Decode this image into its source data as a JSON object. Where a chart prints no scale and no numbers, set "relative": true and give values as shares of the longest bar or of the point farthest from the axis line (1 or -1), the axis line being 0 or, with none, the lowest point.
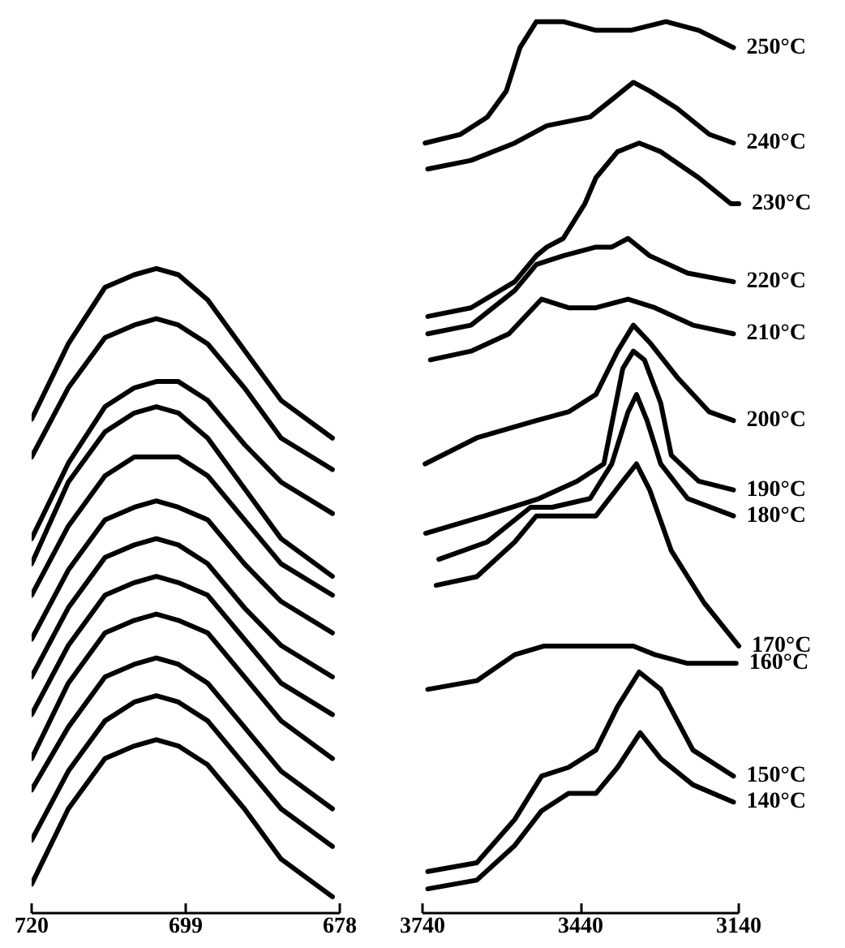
{
  "chart_data": [
    {
      "type": "line",
      "relative": true,
      "tick_labels": "x",
      "xlim": [
        720,
        678
      ],
      "xticks": [
        720,
        699,
        678
      ],
      "x": [
        720,
        715,
        710,
        706,
        703,
        700,
        696,
        691,
        686,
        679
      ],
      "series": [
        {
          "color": "#000000",
          "values": [
            0.76,
            0.88,
            0.97,
            0.99,
            1.0,
            0.99,
            0.95,
            0.87,
            0.79,
            0.73
          ]
        },
        {
          "color": "#000000",
          "values": [
            0.7,
            0.81,
            0.89,
            0.91,
            0.92,
            0.91,
            0.88,
            0.81,
            0.73,
            0.68
          ]
        },
        {
          "color": "#000000",
          "values": [
            0.57,
            0.69,
            0.78,
            0.81,
            0.82,
            0.82,
            0.79,
            0.72,
            0.66,
            0.61
          ]
        },
        {
          "color": "#000000",
          "values": [
            0.53,
            0.66,
            0.74,
            0.77,
            0.78,
            0.77,
            0.73,
            0.65,
            0.57,
            0.51
          ]
        },
        {
          "color": "#000000",
          "values": [
            0.48,
            0.59,
            0.67,
            0.7,
            0.7,
            0.7,
            0.67,
            0.6,
            0.53,
            0.48
          ]
        },
        {
          "color": "#000000",
          "values": [
            0.41,
            0.52,
            0.6,
            0.62,
            0.63,
            0.62,
            0.6,
            0.53,
            0.47,
            0.42
          ]
        },
        {
          "color": "#000000",
          "values": [
            0.35,
            0.46,
            0.54,
            0.56,
            0.57,
            0.56,
            0.53,
            0.46,
            0.4,
            0.35
          ]
        },
        {
          "color": "#000000",
          "values": [
            0.29,
            0.4,
            0.48,
            0.5,
            0.51,
            0.5,
            0.48,
            0.41,
            0.34,
            0.29
          ]
        },
        {
          "color": "#000000",
          "values": [
            0.22,
            0.34,
            0.42,
            0.44,
            0.45,
            0.44,
            0.42,
            0.35,
            0.28,
            0.22
          ]
        },
        {
          "color": "#000000",
          "values": [
            0.17,
            0.27,
            0.35,
            0.37,
            0.38,
            0.37,
            0.34,
            0.27,
            0.2,
            0.14
          ]
        },
        {
          "color": "#000000",
          "values": [
            0.09,
            0.2,
            0.28,
            0.31,
            0.32,
            0.31,
            0.28,
            0.21,
            0.14,
            0.08
          ]
        },
        {
          "color": "#000000",
          "values": [
            0.02,
            0.14,
            0.22,
            0.24,
            0.25,
            0.24,
            0.21,
            0.14,
            0.06,
            0.0
          ]
        }
      ]
    },
    {
      "type": "line",
      "relative": true,
      "tick_labels": "x",
      "xlim": [
        3740,
        3140
      ],
      "xticks": [
        3740,
        3440,
        3140
      ],
      "series": [
        {
          "name": "250°C",
          "color": "#000000",
          "x": [
            3735,
            3668,
            3617,
            3581,
            3555,
            3524,
            3473,
            3411,
            3345,
            3278,
            3216,
            3150
          ],
          "values": [
            0.86,
            0.87,
            0.89,
            0.92,
            0.97,
            1.0,
            1.0,
            0.99,
            0.99,
            1.0,
            0.99,
            0.97
          ]
        },
        {
          "name": "240°C",
          "color": "#000000",
          "x": [
            3730,
            3648,
            3565,
            3504,
            3422,
            3381,
            3340,
            3309,
            3257,
            3196,
            3150
          ],
          "values": [
            0.83,
            0.84,
            0.86,
            0.88,
            0.89,
            0.91,
            0.93,
            0.92,
            0.9,
            0.87,
            0.86
          ]
        },
        {
          "name": "230°C",
          "color": "#000000",
          "x": [
            3730,
            3648,
            3565,
            3524,
            3504,
            3473,
            3432,
            3411,
            3370,
            3329,
            3288,
            3216,
            3155,
            3140
          ],
          "values": [
            0.66,
            0.67,
            0.7,
            0.73,
            0.74,
            0.75,
            0.79,
            0.82,
            0.85,
            0.86,
            0.85,
            0.82,
            0.79,
            0.79
          ]
        },
        {
          "name": "220°C",
          "color": "#000000",
          "x": [
            3730,
            3648,
            3565,
            3524,
            3473,
            3411,
            3381,
            3350,
            3309,
            3237,
            3150
          ],
          "values": [
            0.64,
            0.65,
            0.69,
            0.72,
            0.73,
            0.74,
            0.74,
            0.75,
            0.73,
            0.71,
            0.7
          ]
        },
        {
          "name": "210°C",
          "color": "#000000",
          "x": [
            3725,
            3648,
            3576,
            3514,
            3463,
            3411,
            3350,
            3299,
            3227,
            3150
          ],
          "values": [
            0.61,
            0.62,
            0.64,
            0.68,
            0.67,
            0.67,
            0.68,
            0.67,
            0.65,
            0.64
          ]
        },
        {
          "name": "200°C",
          "color": "#000000",
          "x": [
            3735,
            3637,
            3524,
            3463,
            3411,
            3370,
            3340,
            3309,
            3257,
            3196,
            3150
          ],
          "values": [
            0.49,
            0.52,
            0.54,
            0.55,
            0.57,
            0.62,
            0.65,
            0.63,
            0.59,
            0.55,
            0.54
          ]
        },
        {
          "name": "190°C",
          "color": "#000000",
          "x": [
            3734,
            3622,
            3519,
            3447,
            3396,
            3360,
            3340,
            3319,
            3288,
            3268,
            3216,
            3150
          ],
          "values": [
            0.41,
            0.43,
            0.45,
            0.47,
            0.49,
            0.6,
            0.62,
            0.61,
            0.56,
            0.5,
            0.47,
            0.46
          ]
        },
        {
          "name": "180°C",
          "color": "#000000",
          "x": [
            3709,
            3617,
            3535,
            3494,
            3422,
            3381,
            3350,
            3334,
            3314,
            3288,
            3237,
            3150
          ],
          "values": [
            0.38,
            0.4,
            0.44,
            0.44,
            0.45,
            0.49,
            0.55,
            0.57,
            0.54,
            0.49,
            0.45,
            0.43
          ]
        },
        {
          "name": "170°C",
          "color": "#000000",
          "x": [
            3714,
            3637,
            3565,
            3524,
            3463,
            3411,
            3360,
            3334,
            3309,
            3268,
            3206,
            3140
          ],
          "values": [
            0.35,
            0.36,
            0.4,
            0.43,
            0.43,
            0.43,
            0.47,
            0.49,
            0.46,
            0.39,
            0.33,
            0.28
          ]
        },
        {
          "name": "160°C",
          "color": "#000000",
          "x": [
            3730,
            3637,
            3565,
            3509,
            3463,
            3401,
            3340,
            3299,
            3237,
            3145
          ],
          "values": [
            0.23,
            0.24,
            0.27,
            0.28,
            0.28,
            0.28,
            0.28,
            0.27,
            0.26,
            0.26
          ]
        },
        {
          "name": "150°C",
          "color": "#000000",
          "x": [
            3730,
            3637,
            3565,
            3514,
            3463,
            3411,
            3370,
            3329,
            3288,
            3227,
            3150
          ],
          "values": [
            0.02,
            0.03,
            0.08,
            0.13,
            0.14,
            0.16,
            0.21,
            0.25,
            0.23,
            0.16,
            0.13
          ]
        },
        {
          "name": "140°C",
          "color": "#000000",
          "x": [
            3730,
            3637,
            3565,
            3514,
            3463,
            3411,
            3370,
            3327,
            3288,
            3227,
            3150
          ],
          "values": [
            0.0,
            0.01,
            0.05,
            0.09,
            0.11,
            0.11,
            0.14,
            0.18,
            0.15,
            0.12,
            0.1
          ]
        }
      ]
    }
  ]
}
